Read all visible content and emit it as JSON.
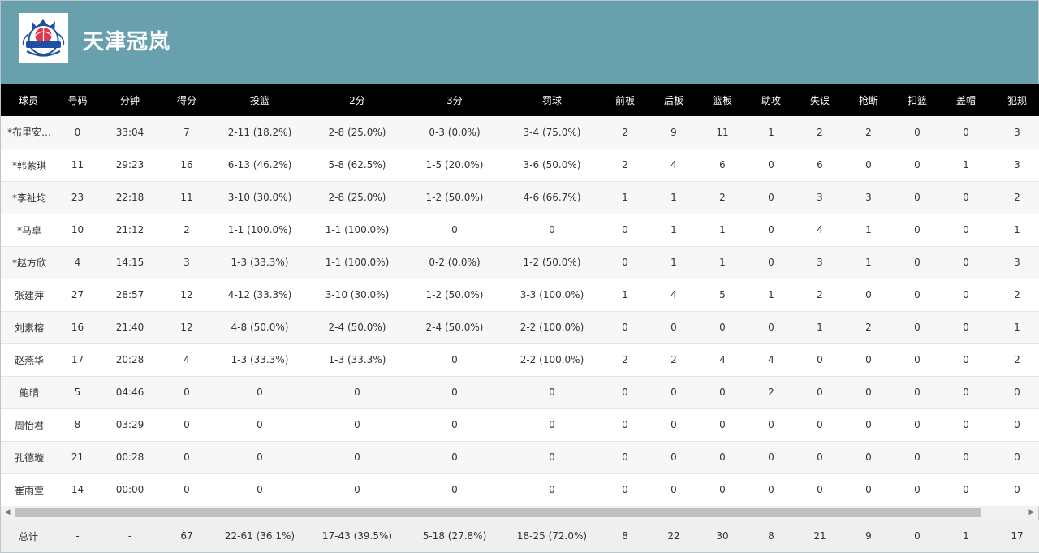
{
  "team": {
    "name": "天津冠岚",
    "logo_text": "天津冠岚 TIANJIN"
  },
  "columns": [
    "球员",
    "号码",
    "分钟",
    "得分",
    "投篮",
    "2分",
    "3分",
    "罚球",
    "前板",
    "后板",
    "篮板",
    "助攻",
    "失误",
    "抢断",
    "扣篮",
    "盖帽",
    "犯规"
  ],
  "players": [
    [
      "*布里安…",
      "0",
      "33:04",
      "7",
      "2-11 (18.2%)",
      "2-8 (25.0%)",
      "0-3 (0.0%)",
      "3-4 (75.0%)",
      "2",
      "9",
      "11",
      "1",
      "2",
      "2",
      "0",
      "0",
      "3"
    ],
    [
      "*韩紫琪",
      "11",
      "29:23",
      "16",
      "6-13 (46.2%)",
      "5-8 (62.5%)",
      "1-5 (20.0%)",
      "3-6 (50.0%)",
      "2",
      "4",
      "6",
      "0",
      "6",
      "0",
      "0",
      "1",
      "3"
    ],
    [
      "*李祉均",
      "23",
      "22:18",
      "11",
      "3-10 (30.0%)",
      "2-8 (25.0%)",
      "1-2 (50.0%)",
      "4-6 (66.7%)",
      "1",
      "1",
      "2",
      "0",
      "3",
      "3",
      "0",
      "0",
      "2"
    ],
    [
      "*马卓",
      "10",
      "21:12",
      "2",
      "1-1 (100.0%)",
      "1-1 (100.0%)",
      "0",
      "0",
      "0",
      "1",
      "1",
      "0",
      "4",
      "1",
      "0",
      "0",
      "1"
    ],
    [
      "*赵方欣",
      "4",
      "14:15",
      "3",
      "1-3 (33.3%)",
      "1-1 (100.0%)",
      "0-2 (0.0%)",
      "1-2 (50.0%)",
      "0",
      "1",
      "1",
      "0",
      "3",
      "1",
      "0",
      "0",
      "3"
    ],
    [
      "张建萍",
      "27",
      "28:57",
      "12",
      "4-12 (33.3%)",
      "3-10 (30.0%)",
      "1-2 (50.0%)",
      "3-3 (100.0%)",
      "1",
      "4",
      "5",
      "1",
      "2",
      "0",
      "0",
      "0",
      "2"
    ],
    [
      "刘素榕",
      "16",
      "21:40",
      "12",
      "4-8 (50.0%)",
      "2-4 (50.0%)",
      "2-4 (50.0%)",
      "2-2 (100.0%)",
      "0",
      "0",
      "0",
      "0",
      "1",
      "2",
      "0",
      "0",
      "1"
    ],
    [
      "赵燕华",
      "17",
      "20:28",
      "4",
      "1-3 (33.3%)",
      "1-3 (33.3%)",
      "0",
      "2-2 (100.0%)",
      "2",
      "2",
      "4",
      "4",
      "0",
      "0",
      "0",
      "0",
      "2"
    ],
    [
      "鲍晴",
      "5",
      "04:46",
      "0",
      "0",
      "0",
      "0",
      "0",
      "0",
      "0",
      "0",
      "2",
      "0",
      "0",
      "0",
      "0",
      "0"
    ],
    [
      "周怡君",
      "8",
      "03:29",
      "0",
      "0",
      "0",
      "0",
      "0",
      "0",
      "0",
      "0",
      "0",
      "0",
      "0",
      "0",
      "0",
      "0"
    ],
    [
      "孔德璇",
      "21",
      "00:28",
      "0",
      "0",
      "0",
      "0",
      "0",
      "0",
      "0",
      "0",
      "0",
      "0",
      "0",
      "0",
      "0",
      "0"
    ],
    [
      "崔雨萱",
      "14",
      "00:00",
      "0",
      "0",
      "0",
      "0",
      "0",
      "0",
      "0",
      "0",
      "0",
      "0",
      "0",
      "0",
      "0",
      "0"
    ]
  ],
  "totals": [
    "总计",
    "-",
    "-",
    "67",
    "22-61 (36.1%)",
    "17-43 (39.5%)",
    "5-18 (27.8%)",
    "18-25 (72.0%)",
    "8",
    "22",
    "30",
    "8",
    "21",
    "9",
    "0",
    "1",
    "17"
  ],
  "colors": {
    "header_bg": "#68a1ad",
    "table_head_bg": "#000000"
  },
  "icons": {
    "scroll_left": "◀",
    "scroll_right": "▶"
  }
}
